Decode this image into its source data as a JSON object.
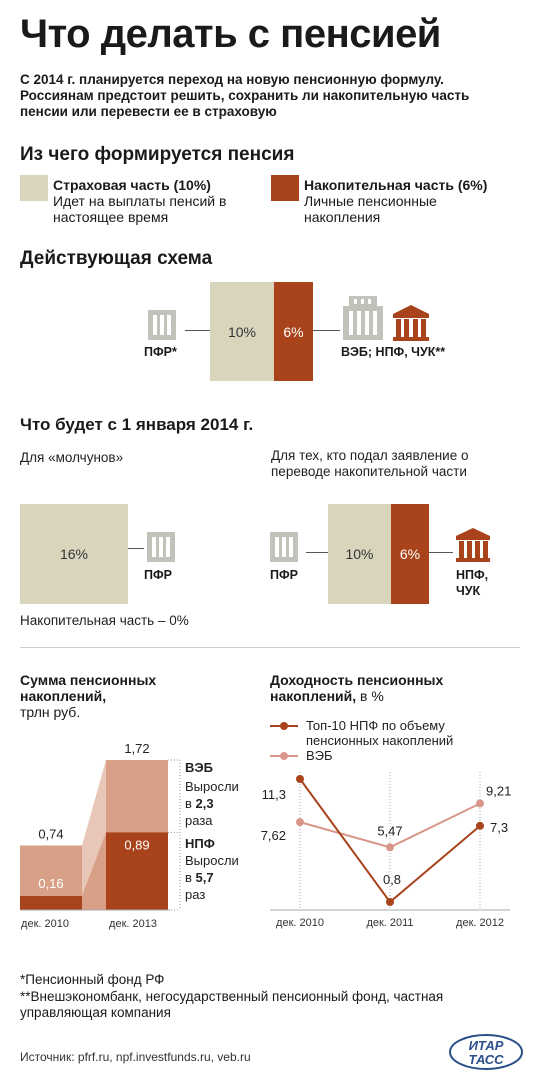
{
  "title": "Что делать с пенсией",
  "lead": "С 2014 г. планируется переход на новую пенсионную формулу. Россиянам предстоит решить, сохранить ли накопительную часть пенсии или перевести ее в страховую",
  "composition": {
    "heading": "Из чего формируется пенсия",
    "insurance_title": "Страховая часть (10%)",
    "insurance_desc": "Идет на выплаты пенсий в настоящее время",
    "accum_title": "Накопительная часть (6%)",
    "accum_desc": "Личные пенсионные накопления"
  },
  "current": {
    "heading": "Действующая схема",
    "left_pct": "10%",
    "right_pct": "6%",
    "pfr_label": "ПФР*",
    "right_label": "ВЭБ; НПФ, ЧУК**"
  },
  "future": {
    "heading": "Что будет с 1 января 2014 г.",
    "silent_title": "Для «молчунов»",
    "silent_pct": "16%",
    "silent_pfr": "ПФР",
    "silent_note": "Накопительная часть – 0%",
    "applied_title": "Для тех, кто подал заявление о переводе накопительной части",
    "applied_left_pct": "10%",
    "applied_right_pct": "6%",
    "applied_pfr": "ПФР",
    "applied_right_label": "НПФ, ЧУК"
  },
  "colors": {
    "insurance": "#d9d5bd",
    "accumulative": "#a8431c",
    "veb_light": "#d9a088",
    "veb_area": "#e9c7b8",
    "building_gray": "#c2c2bb",
    "line_light": "#d9968a"
  },
  "chart_data": [
    {
      "type": "bar",
      "title": "Сумма пенсионных накоплений,",
      "subtitle": "трлн руб.",
      "categories": [
        "дек. 2010",
        "дек. 2013"
      ],
      "series": [
        {
          "name": "ВЭБ",
          "values": [
            0.74,
            1.72
          ],
          "note": "Выросли в 2,3 раза",
          "factor": "2,3"
        },
        {
          "name": "НПФ",
          "values": [
            0.16,
            0.89
          ],
          "note": "Выросли в 5,7 раз",
          "factor": "5,7"
        }
      ],
      "value_labels": [
        "0,74",
        "1,72",
        "0,16",
        "0,89"
      ],
      "veb_note_pre": "Выросли",
      "veb_note_in": "в",
      "veb_note_post": "раза",
      "npf_note_post": "раз",
      "ylim": [
        0,
        1.72
      ]
    },
    {
      "type": "line",
      "title": "Доходность пенсионных накоплений,",
      "unit": "в %",
      "categories": [
        "дек. 2010",
        "дек. 2011",
        "дек. 2012"
      ],
      "series": [
        {
          "name": "Топ-10 НПФ по объему пенсионных накоплений",
          "values": [
            11.3,
            0.8,
            7.3
          ],
          "labels": [
            "11,3",
            "0,8",
            "7,3"
          ]
        },
        {
          "name": "ВЭБ",
          "values": [
            7.62,
            5.47,
            9.21
          ],
          "labels": [
            "7,62",
            "5,47",
            "9,21"
          ]
        }
      ],
      "ylim": [
        0.8,
        11.3
      ],
      "legend": "top-left"
    }
  ],
  "footnotes": {
    "note1": "*Пенсионный фонд РФ",
    "note2": "**Внешэкономбанк, негосударственный пенсионный фонд, частная управляющая компания",
    "source": "Источник: pfrf.ru, npf.investfunds.ru, veb.ru",
    "logo_line1": "ИТАР",
    "logo_line2": "ТАСС"
  }
}
